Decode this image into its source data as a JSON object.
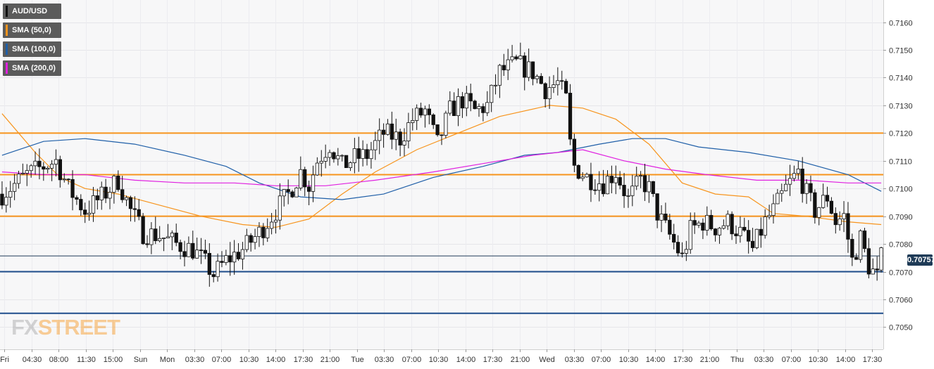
{
  "legend": [
    {
      "label": "AUD/USD",
      "color": "#111111"
    },
    {
      "label": "SMA (50,0)",
      "color": "#f7941d"
    },
    {
      "label": "SMA (100,0)",
      "color": "#1f5fa8"
    },
    {
      "label": "SMA (200,0)",
      "color": "#e020e0"
    }
  ],
  "price_tag": "0.70757",
  "watermark": {
    "part1": "FX",
    "part2": "STREET"
  },
  "chart_data": {
    "type": "candlestick",
    "title": "",
    "symbol": "AUD/USD",
    "y_axis": {
      "ticks": [
        "0.7050",
        "0.7060",
        "0.7070",
        "0.7080",
        "0.7090",
        "0.7100",
        "0.7110",
        "0.7120",
        "0.7130",
        "0.7140",
        "0.7150",
        "0.7160"
      ],
      "range": [
        0.7042,
        0.7168
      ],
      "position": "right"
    },
    "x_axis": {
      "ticks": [
        "Fri",
        "04:30",
        "08:00",
        "11:30",
        "15:00",
        "Sun",
        "Mon",
        "03:30",
        "07:00",
        "10:30",
        "14:00",
        "17:30",
        "21:00",
        "Tue",
        "03:30",
        "07:00",
        "10:30",
        "14:00",
        "17:30",
        "21:00",
        "Wed",
        "03:30",
        "07:00",
        "10:30",
        "14:00",
        "17:30",
        "21:00",
        "Thu",
        "03:30",
        "07:00",
        "10:30",
        "14:00",
        "17:30"
      ]
    },
    "horizontal_levels": [
      {
        "value": 0.712,
        "color": "#f7941d"
      },
      {
        "value": 0.7105,
        "color": "#f7941d"
      },
      {
        "value": 0.709,
        "color": "#f7941d"
      },
      {
        "value": 0.707,
        "color": "#1f4e8c"
      },
      {
        "value": 0.7055,
        "color": "#1f4e8c"
      },
      {
        "value": 0.70757,
        "color": "#1f3b57"
      }
    ],
    "anchors": [
      [
        0,
        0.7098
      ],
      [
        6,
        0.7105
      ],
      [
        10,
        0.7108
      ],
      [
        13,
        0.711
      ],
      [
        16,
        0.71
      ],
      [
        20,
        0.7092
      ],
      [
        24,
        0.7097
      ],
      [
        28,
        0.7103
      ],
      [
        31,
        0.7092
      ],
      [
        34,
        0.7084
      ],
      [
        38,
        0.7083
      ],
      [
        42,
        0.708
      ],
      [
        46,
        0.7078
      ],
      [
        49,
        0.7073
      ],
      [
        51,
        0.7069
      ],
      [
        54,
        0.7074
      ],
      [
        58,
        0.7078
      ],
      [
        62,
        0.7084
      ],
      [
        66,
        0.7092
      ],
      [
        69,
        0.7098
      ],
      [
        72,
        0.7106
      ],
      [
        74,
        0.7101
      ],
      [
        76,
        0.711
      ],
      [
        79,
        0.7116
      ],
      [
        82,
        0.7108
      ],
      [
        85,
        0.7111
      ],
      [
        88,
        0.7112
      ],
      [
        92,
        0.712
      ],
      [
        96,
        0.7118
      ],
      [
        99,
        0.7125
      ],
      [
        102,
        0.7128
      ],
      [
        105,
        0.7116
      ],
      [
        108,
        0.7128
      ],
      [
        111,
        0.7132
      ],
      [
        114,
        0.7128
      ],
      [
        117,
        0.713
      ],
      [
        120,
        0.7142
      ],
      [
        124,
        0.7145
      ],
      [
        128,
        0.7142
      ],
      [
        131,
        0.7136
      ],
      [
        134,
        0.7138
      ],
      [
        136,
        0.7132
      ],
      [
        137,
        0.7116
      ],
      [
        138,
        0.7108
      ],
      [
        141,
        0.7104
      ],
      [
        145,
        0.7102
      ],
      [
        148,
        0.7106
      ],
      [
        151,
        0.7096
      ],
      [
        154,
        0.7103
      ],
      [
        156,
        0.71
      ],
      [
        158,
        0.7091
      ],
      [
        161,
        0.7083
      ],
      [
        164,
        0.7075
      ],
      [
        166,
        0.7085
      ],
      [
        169,
        0.7088
      ],
      [
        172,
        0.7086
      ],
      [
        175,
        0.7088
      ],
      [
        178,
        0.7084
      ],
      [
        181,
        0.7078
      ],
      [
        184,
        0.7088
      ],
      [
        186,
        0.7092
      ],
      [
        189,
        0.71
      ],
      [
        192,
        0.7106
      ],
      [
        194,
        0.7098
      ],
      [
        196,
        0.7092
      ],
      [
        199,
        0.7097
      ],
      [
        201,
        0.7088
      ],
      [
        203,
        0.709
      ],
      [
        205,
        0.7074
      ],
      [
        207,
        0.7082
      ],
      [
        209,
        0.7072
      ],
      [
        211,
        0.7068
      ],
      [
        212,
        0.7075
      ]
    ],
    "sma": [
      {
        "name": "SMA (50,0)",
        "color": "#f7941d",
        "points": [
          [
            0,
            0.7127
          ],
          [
            8,
            0.7113
          ],
          [
            14,
            0.7104
          ],
          [
            20,
            0.71
          ],
          [
            28,
            0.7098
          ],
          [
            38,
            0.7094
          ],
          [
            48,
            0.709
          ],
          [
            58,
            0.7087
          ],
          [
            66,
            0.7086
          ],
          [
            74,
            0.7089
          ],
          [
            82,
            0.7098
          ],
          [
            90,
            0.7106
          ],
          [
            100,
            0.7114
          ],
          [
            110,
            0.712
          ],
          [
            120,
            0.7126
          ],
          [
            132,
            0.713
          ],
          [
            140,
            0.7129
          ],
          [
            148,
            0.7125
          ],
          [
            156,
            0.7116
          ],
          [
            164,
            0.7102
          ],
          [
            172,
            0.7098
          ],
          [
            180,
            0.7097
          ],
          [
            186,
            0.7091
          ],
          [
            194,
            0.709
          ],
          [
            204,
            0.7088
          ],
          [
            212,
            0.7087
          ]
        ]
      },
      {
        "name": "SMA (100,0)",
        "color": "#1f5fa8",
        "points": [
          [
            0,
            0.7112
          ],
          [
            10,
            0.7117
          ],
          [
            20,
            0.7118
          ],
          [
            32,
            0.7116
          ],
          [
            44,
            0.7112
          ],
          [
            54,
            0.7108
          ],
          [
            62,
            0.7102
          ],
          [
            72,
            0.7097
          ],
          [
            82,
            0.7096
          ],
          [
            92,
            0.7098
          ],
          [
            104,
            0.7104
          ],
          [
            116,
            0.7108
          ],
          [
            126,
            0.7112
          ],
          [
            134,
            0.7113
          ],
          [
            144,
            0.7116
          ],
          [
            152,
            0.7118
          ],
          [
            160,
            0.7118
          ],
          [
            168,
            0.7115
          ],
          [
            180,
            0.7113
          ],
          [
            192,
            0.711
          ],
          [
            204,
            0.7105
          ],
          [
            212,
            0.7099
          ]
        ]
      },
      {
        "name": "SMA (200,0)",
        "color": "#e020e0",
        "points": [
          [
            0,
            0.7106
          ],
          [
            10,
            0.7105
          ],
          [
            20,
            0.7105
          ],
          [
            32,
            0.7103
          ],
          [
            44,
            0.7102
          ],
          [
            56,
            0.7102
          ],
          [
            66,
            0.7101
          ],
          [
            78,
            0.7101
          ],
          [
            90,
            0.7103
          ],
          [
            104,
            0.7106
          ],
          [
            116,
            0.7109
          ],
          [
            128,
            0.7112
          ],
          [
            140,
            0.7114
          ],
          [
            150,
            0.711
          ],
          [
            160,
            0.7107
          ],
          [
            170,
            0.7105
          ],
          [
            182,
            0.7103
          ],
          [
            194,
            0.7103
          ],
          [
            204,
            0.7102
          ],
          [
            212,
            0.7102
          ]
        ]
      }
    ]
  }
}
